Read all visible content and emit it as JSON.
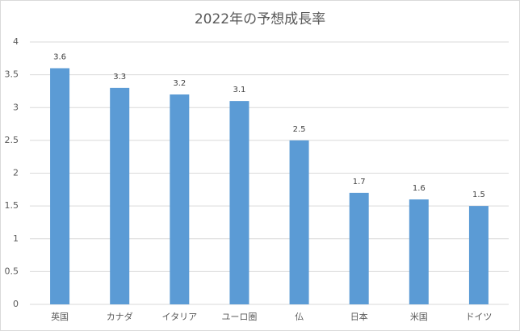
{
  "chart_data": {
    "type": "bar",
    "title": "2022年の予想成長率",
    "categories": [
      "英国",
      "カナダ",
      "イタリア",
      "ユーロ圏",
      "仏",
      "日本",
      "米国",
      "ドイツ"
    ],
    "values": [
      3.6,
      3.3,
      3.2,
      3.1,
      2.5,
      1.7,
      1.6,
      1.5
    ],
    "color": "#5b9bd5",
    "ylim": [
      0,
      4
    ],
    "yticks": [
      0,
      0.5,
      1,
      1.5,
      2,
      2.5,
      3,
      3.5,
      4
    ],
    "grid": true
  }
}
